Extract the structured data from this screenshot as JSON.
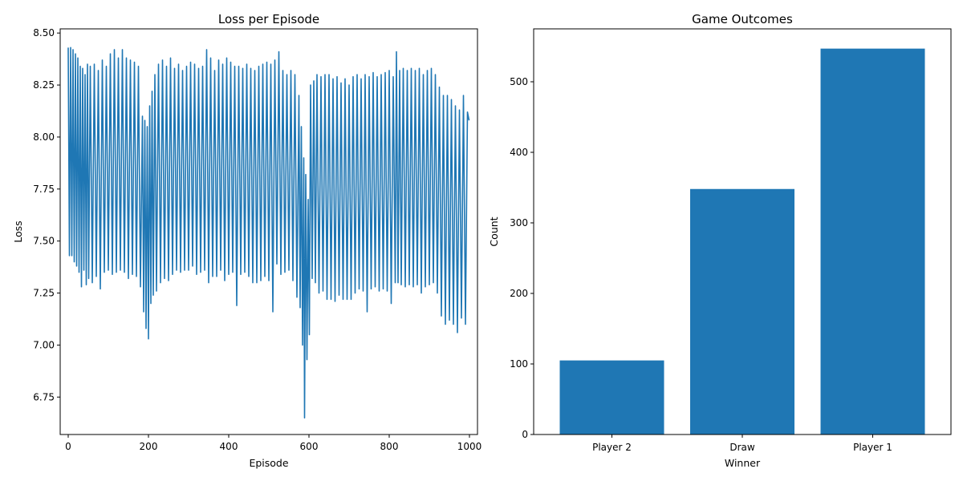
{
  "chart_data": [
    {
      "type": "line",
      "title": "Loss per Episode",
      "xlabel": "Episode",
      "ylabel": "Loss",
      "xlim": [
        -20,
        1020
      ],
      "ylim": [
        6.57,
        8.52
      ],
      "xticks": [
        0,
        200,
        400,
        600,
        800,
        1000
      ],
      "xtick_labels": [
        "0",
        "200",
        "400",
        "600",
        "800",
        "1000"
      ],
      "yticks": [
        6.75,
        7.0,
        7.25,
        7.5,
        7.75,
        8.0,
        8.25,
        8.5
      ],
      "ytick_labels": [
        "6.75",
        "7.00",
        "7.25",
        "7.50",
        "7.75",
        "8.00",
        "8.25",
        "8.50"
      ],
      "grid": false,
      "color": "#1f77b4",
      "series": [
        {
          "points": [
            [
              0,
              8.43
            ],
            [
              3,
              7.43
            ],
            [
              6,
              8.43
            ],
            [
              9,
              7.43
            ],
            [
              12,
              8.42
            ],
            [
              15,
              7.4
            ],
            [
              18,
              8.4
            ],
            [
              21,
              7.38
            ],
            [
              24,
              8.38
            ],
            [
              27,
              7.35
            ],
            [
              30,
              8.34
            ],
            [
              33,
              7.28
            ],
            [
              36,
              8.33
            ],
            [
              39,
              7.36
            ],
            [
              42,
              8.3
            ],
            [
              45,
              7.29
            ],
            [
              48,
              8.35
            ],
            [
              51,
              7.32
            ],
            [
              55,
              8.34
            ],
            [
              60,
              7.3
            ],
            [
              65,
              8.35
            ],
            [
              70,
              7.33
            ],
            [
              75,
              8.32
            ],
            [
              80,
              7.27
            ],
            [
              85,
              8.37
            ],
            [
              90,
              7.35
            ],
            [
              95,
              8.34
            ],
            [
              100,
              7.36
            ],
            [
              105,
              8.4
            ],
            [
              110,
              7.34
            ],
            [
              115,
              8.42
            ],
            [
              120,
              7.35
            ],
            [
              125,
              8.38
            ],
            [
              130,
              7.36
            ],
            [
              135,
              8.42
            ],
            [
              140,
              7.35
            ],
            [
              145,
              8.38
            ],
            [
              150,
              7.32
            ],
            [
              155,
              8.37
            ],
            [
              160,
              7.34
            ],
            [
              165,
              8.36
            ],
            [
              170,
              7.33
            ],
            [
              175,
              8.34
            ],
            [
              180,
              7.28
            ],
            [
              185,
              8.1
            ],
            [
              188,
              7.16
            ],
            [
              191,
              8.08
            ],
            [
              194,
              7.08
            ],
            [
              197,
              8.05
            ],
            [
              200,
              7.03
            ],
            [
              203,
              8.15
            ],
            [
              206,
              7.2
            ],
            [
              209,
              8.22
            ],
            [
              212,
              7.24
            ],
            [
              216,
              8.3
            ],
            [
              220,
              7.26
            ],
            [
              225,
              8.35
            ],
            [
              230,
              7.3
            ],
            [
              235,
              8.37
            ],
            [
              240,
              7.32
            ],
            [
              245,
              8.34
            ],
            [
              250,
              7.31
            ],
            [
              255,
              8.38
            ],
            [
              260,
              7.34
            ],
            [
              265,
              8.33
            ],
            [
              270,
              7.36
            ],
            [
              275,
              8.35
            ],
            [
              280,
              7.35
            ],
            [
              285,
              8.32
            ],
            [
              290,
              7.36
            ],
            [
              295,
              8.34
            ],
            [
              300,
              7.36
            ],
            [
              305,
              8.36
            ],
            [
              310,
              7.38
            ],
            [
              315,
              8.35
            ],
            [
              320,
              7.34
            ],
            [
              325,
              8.33
            ],
            [
              330,
              7.35
            ],
            [
              335,
              8.34
            ],
            [
              340,
              7.36
            ],
            [
              345,
              8.42
            ],
            [
              350,
              7.3
            ],
            [
              355,
              8.38
            ],
            [
              360,
              7.33
            ],
            [
              365,
              8.32
            ],
            [
              370,
              7.33
            ],
            [
              375,
              8.37
            ],
            [
              380,
              7.36
            ],
            [
              385,
              8.35
            ],
            [
              390,
              7.31
            ],
            [
              395,
              8.38
            ],
            [
              400,
              7.34
            ],
            [
              405,
              8.36
            ],
            [
              410,
              7.35
            ],
            [
              415,
              8.34
            ],
            [
              420,
              7.19
            ],
            [
              425,
              8.34
            ],
            [
              430,
              7.34
            ],
            [
              435,
              8.33
            ],
            [
              440,
              7.35
            ],
            [
              445,
              8.35
            ],
            [
              450,
              7.33
            ],
            [
              455,
              8.33
            ],
            [
              460,
              7.3
            ],
            [
              465,
              8.32
            ],
            [
              470,
              7.3
            ],
            [
              475,
              8.34
            ],
            [
              480,
              7.31
            ],
            [
              485,
              8.35
            ],
            [
              490,
              7.33
            ],
            [
              495,
              8.36
            ],
            [
              500,
              7.31
            ],
            [
              505,
              8.35
            ],
            [
              510,
              7.16
            ],
            [
              515,
              8.37
            ],
            [
              520,
              7.39
            ],
            [
              525,
              8.41
            ],
            [
              530,
              7.34
            ],
            [
              535,
              8.32
            ],
            [
              540,
              7.35
            ],
            [
              545,
              8.3
            ],
            [
              550,
              7.36
            ],
            [
              555,
              8.32
            ],
            [
              560,
              7.31
            ],
            [
              565,
              8.3
            ],
            [
              570,
              7.23
            ],
            [
              575,
              8.2
            ],
            [
              578,
              7.18
            ],
            [
              581,
              8.05
            ],
            [
              584,
              7.0
            ],
            [
              587,
              7.9
            ],
            [
              589,
              6.65
            ],
            [
              592,
              7.82
            ],
            [
              595,
              6.93
            ],
            [
              598,
              7.7
            ],
            [
              601,
              7.05
            ],
            [
              604,
              8.25
            ],
            [
              608,
              7.32
            ],
            [
              612,
              8.27
            ],
            [
              616,
              7.3
            ],
            [
              620,
              8.3
            ],
            [
              625,
              7.25
            ],
            [
              630,
              8.29
            ],
            [
              635,
              7.26
            ],
            [
              640,
              8.3
            ],
            [
              645,
              7.22
            ],
            [
              650,
              8.3
            ],
            [
              655,
              7.22
            ],
            [
              660,
              8.28
            ],
            [
              665,
              7.21
            ],
            [
              670,
              8.29
            ],
            [
              675,
              7.24
            ],
            [
              680,
              8.26
            ],
            [
              685,
              7.22
            ],
            [
              690,
              8.28
            ],
            [
              695,
              7.22
            ],
            [
              700,
              8.25
            ],
            [
              705,
              7.22
            ],
            [
              710,
              8.29
            ],
            [
              715,
              7.25
            ],
            [
              720,
              8.3
            ],
            [
              725,
              7.27
            ],
            [
              730,
              8.28
            ],
            [
              735,
              7.26
            ],
            [
              740,
              8.3
            ],
            [
              745,
              7.16
            ],
            [
              750,
              8.29
            ],
            [
              755,
              7.27
            ],
            [
              760,
              8.31
            ],
            [
              765,
              7.28
            ],
            [
              770,
              8.29
            ],
            [
              775,
              7.26
            ],
            [
              780,
              8.3
            ],
            [
              785,
              7.27
            ],
            [
              790,
              8.31
            ],
            [
              795,
              7.26
            ],
            [
              800,
              8.32
            ],
            [
              805,
              7.2
            ],
            [
              810,
              8.29
            ],
            [
              815,
              7.3
            ],
            [
              818,
              8.41
            ],
            [
              822,
              7.3
            ],
            [
              826,
              8.32
            ],
            [
              830,
              7.29
            ],
            [
              835,
              8.33
            ],
            [
              840,
              7.28
            ],
            [
              845,
              8.32
            ],
            [
              850,
              7.29
            ],
            [
              855,
              8.33
            ],
            [
              860,
              7.28
            ],
            [
              865,
              8.32
            ],
            [
              870,
              7.29
            ],
            [
              875,
              8.33
            ],
            [
              880,
              7.25
            ],
            [
              885,
              8.3
            ],
            [
              890,
              7.28
            ],
            [
              895,
              8.32
            ],
            [
              900,
              7.29
            ],
            [
              905,
              8.33
            ],
            [
              910,
              7.3
            ],
            [
              915,
              8.3
            ],
            [
              920,
              7.25
            ],
            [
              925,
              8.24
            ],
            [
              930,
              7.14
            ],
            [
              935,
              8.2
            ],
            [
              940,
              7.1
            ],
            [
              945,
              8.2
            ],
            [
              950,
              7.12
            ],
            [
              955,
              8.18
            ],
            [
              960,
              7.1
            ],
            [
              965,
              8.15
            ],
            [
              970,
              7.06
            ],
            [
              975,
              8.13
            ],
            [
              980,
              7.13
            ],
            [
              985,
              8.2
            ],
            [
              990,
              7.1
            ],
            [
              995,
              8.12
            ],
            [
              999,
              8.08
            ]
          ]
        }
      ]
    },
    {
      "type": "bar",
      "title": "Game Outcomes",
      "xlabel": "Winner",
      "ylabel": "Count",
      "categories": [
        "Player 2",
        "Draw",
        "Player 1"
      ],
      "values": [
        105,
        348,
        547
      ],
      "ylim": [
        0,
        575
      ],
      "yticks": [
        0,
        100,
        200,
        300,
        400,
        500
      ],
      "ytick_labels": [
        "0",
        "100",
        "200",
        "300",
        "400",
        "500"
      ],
      "grid": false,
      "color": "#1f77b4"
    }
  ]
}
